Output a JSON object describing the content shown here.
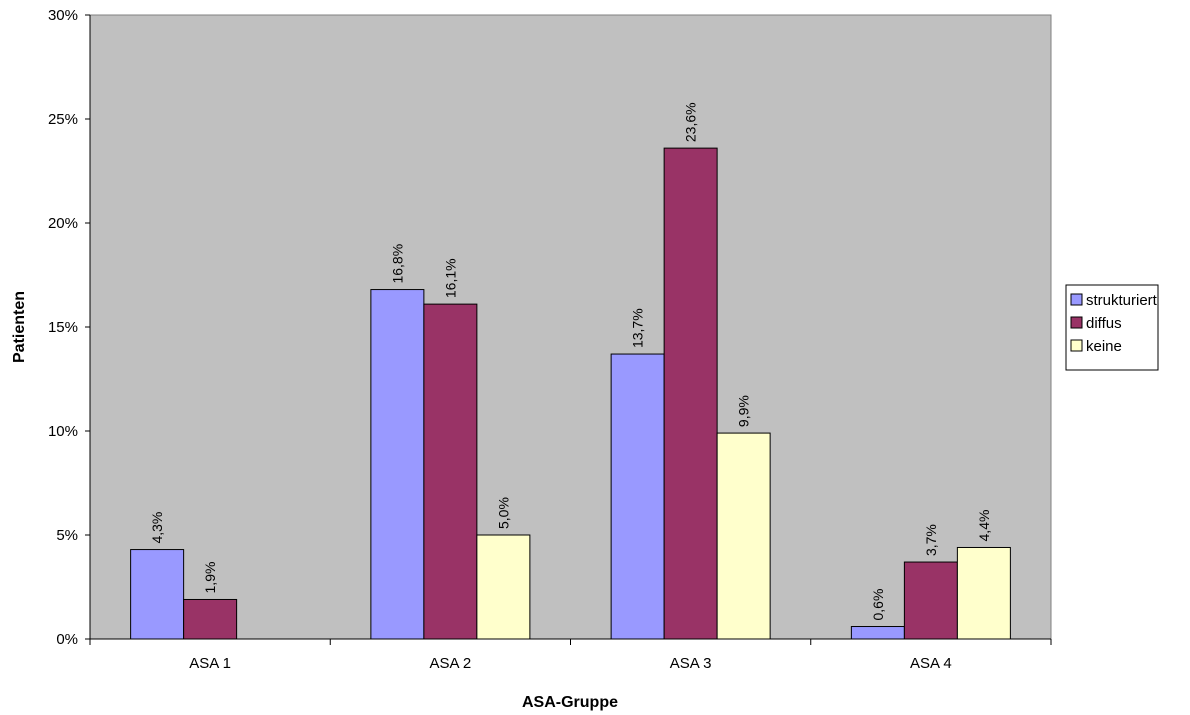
{
  "chart_data": {
    "type": "bar",
    "title": "",
    "xlabel": "ASA-Gruppe",
    "ylabel": "Patienten",
    "categories": [
      "ASA 1",
      "ASA 2",
      "ASA 3",
      "ASA 4"
    ],
    "ylim": [
      0,
      30
    ],
    "yticks": [
      0,
      5,
      10,
      15,
      20,
      25,
      30
    ],
    "ytick_labels": [
      "0%",
      "5%",
      "10%",
      "15%",
      "20%",
      "25%",
      "30%"
    ],
    "grid": false,
    "legend_position": "right",
    "plot_background": "#c0c0c0",
    "series": [
      {
        "name": "strukturiert",
        "color": "#9999ff",
        "values": [
          4.3,
          16.8,
          13.7,
          0.6
        ],
        "labels": [
          "4,3%",
          "16,8%",
          "13,7%",
          "0,6%"
        ]
      },
      {
        "name": "diffus",
        "color": "#993366",
        "values": [
          1.9,
          16.1,
          23.6,
          3.7
        ],
        "labels": [
          "1,9%",
          "16,1%",
          "23,6%",
          "3,7%"
        ]
      },
      {
        "name": "keine",
        "color": "#ffffcc",
        "values": [
          null,
          5.0,
          9.9,
          4.4
        ],
        "labels": [
          null,
          "5,0%",
          "9,9%",
          "4,4%"
        ]
      }
    ]
  }
}
